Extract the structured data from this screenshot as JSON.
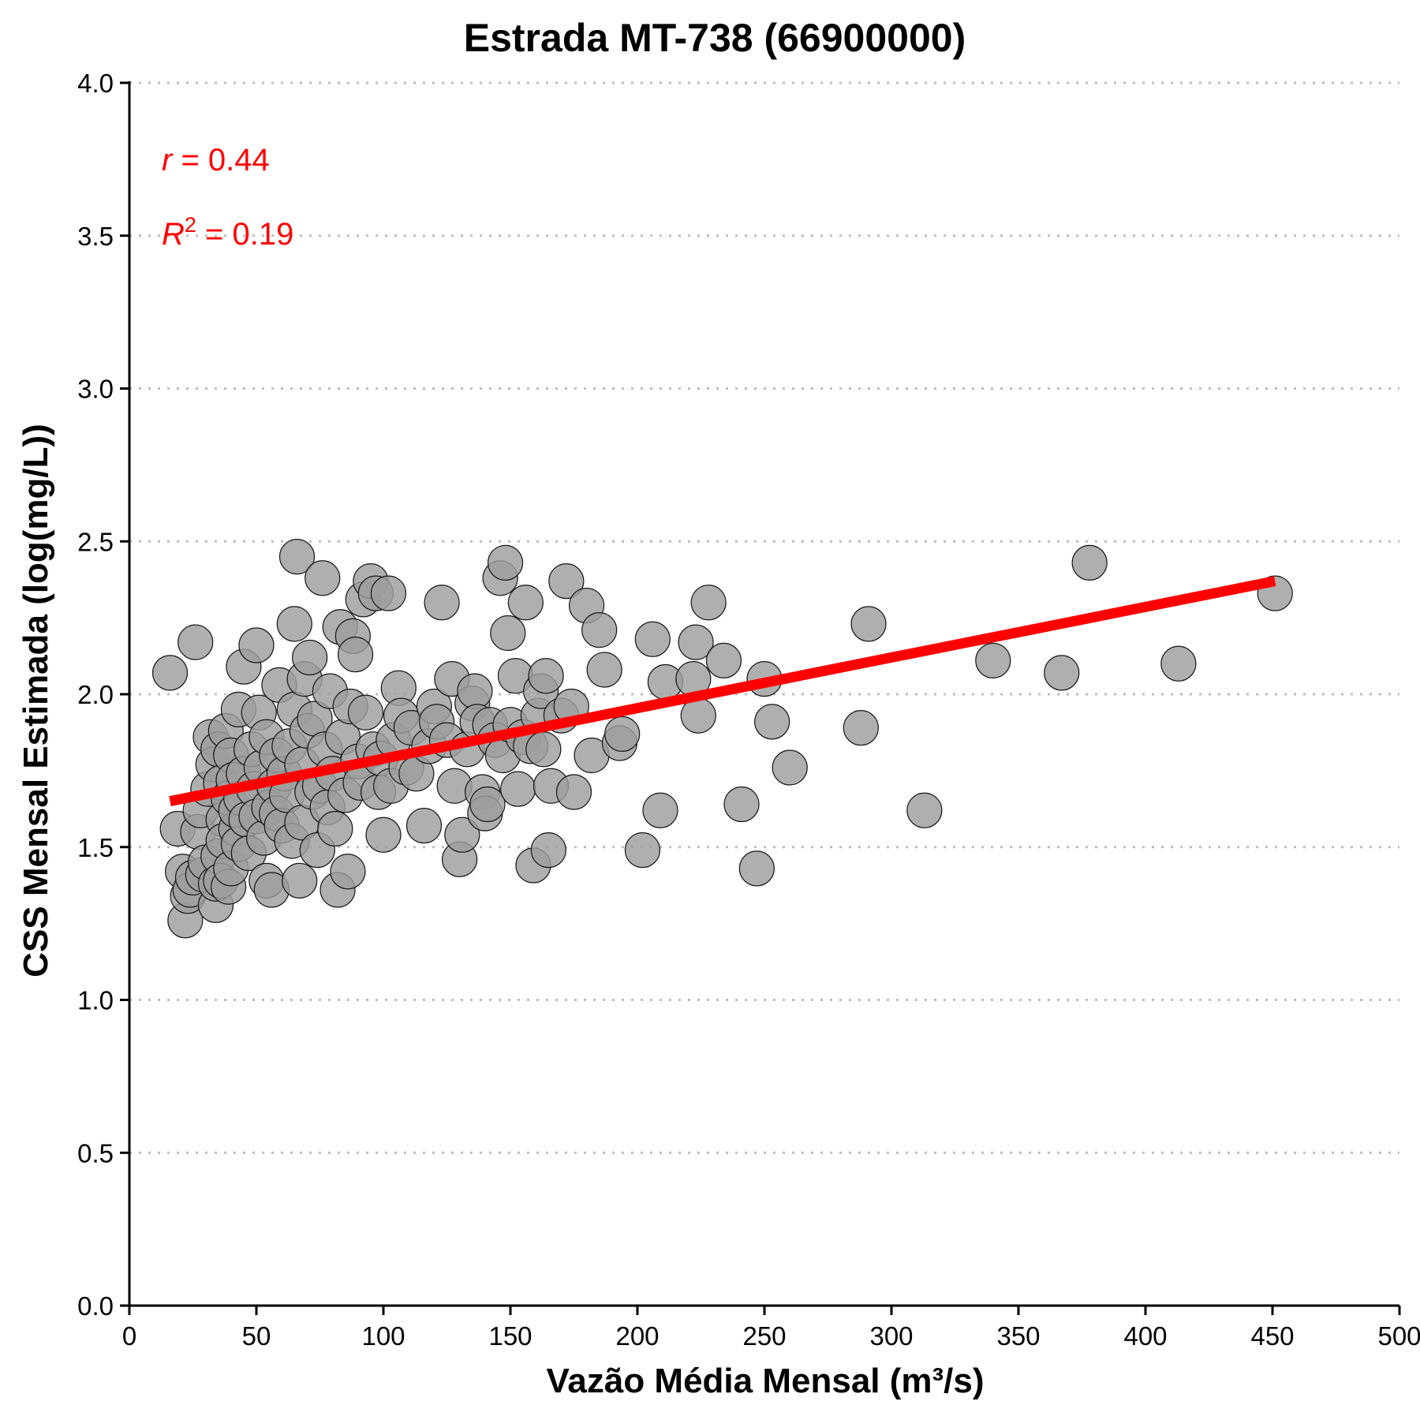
{
  "chart_data": {
    "type": "scatter",
    "title": "Estrada MT-738 (66900000)",
    "xlabel": "Vazão Média Mensal (m³/s)",
    "ylabel": "CSS Mensal Estimada (log(mg/L))",
    "xlim": [
      0,
      500
    ],
    "ylim": [
      0,
      4
    ],
    "xticks": [
      "0",
      "50",
      "100",
      "150",
      "200",
      "250",
      "300",
      "350",
      "400",
      "450",
      "500"
    ],
    "yticks": [
      "0.0",
      "0.5",
      "1.0",
      "1.5",
      "2.0",
      "2.5",
      "3.0",
      "3.5",
      "4.0"
    ],
    "grid": "horizontal-dotted",
    "point_color": "#9e9e9e",
    "line_color": "#ff0000",
    "annotations": {
      "r_symbol": "r",
      "r_text": " = 0.44",
      "r2_symbol": "R",
      "r2_exponent": "2",
      "r2_text": " = 0.19",
      "color": "#ff0000"
    },
    "trend_line": {
      "x": [
        16,
        451
      ],
      "y": [
        1.65,
        2.37
      ]
    },
    "points": [
      [
        16,
        2.07
      ],
      [
        19,
        1.56
      ],
      [
        21,
        1.42
      ],
      [
        22,
        1.26
      ],
      [
        23,
        1.34
      ],
      [
        24,
        1.36
      ],
      [
        25,
        1.4
      ],
      [
        26,
        2.17
      ],
      [
        27,
        1.55
      ],
      [
        28,
        1.62
      ],
      [
        29,
        1.41
      ],
      [
        30,
        1.45
      ],
      [
        31,
        1.69
      ],
      [
        32,
        1.86
      ],
      [
        33,
        1.77
      ],
      [
        34,
        1.31
      ],
      [
        34,
        1.38
      ],
      [
        35,
        1.47
      ],
      [
        35,
        1.82
      ],
      [
        36,
        1.71
      ],
      [
        36,
        1.39
      ],
      [
        37,
        1.59
      ],
      [
        37,
        1.52
      ],
      [
        38,
        1.88
      ],
      [
        39,
        1.37
      ],
      [
        39,
        1.66
      ],
      [
        40,
        1.43
      ],
      [
        40,
        1.8
      ],
      [
        41,
        1.72
      ],
      [
        42,
        1.56
      ],
      [
        42,
        1.62
      ],
      [
        43,
        1.95
      ],
      [
        43,
        1.51
      ],
      [
        44,
        1.66
      ],
      [
        45,
        2.09
      ],
      [
        45,
        1.74
      ],
      [
        46,
        1.59
      ],
      [
        47,
        1.48
      ],
      [
        48,
        1.82
      ],
      [
        49,
        1.69
      ],
      [
        50,
        2.16
      ],
      [
        50,
        1.6
      ],
      [
        51,
        1.94
      ],
      [
        52,
        1.76
      ],
      [
        53,
        1.53
      ],
      [
        54,
        1.39
      ],
      [
        54,
        1.86
      ],
      [
        55,
        1.63
      ],
      [
        56,
        1.36
      ],
      [
        57,
        1.7
      ],
      [
        58,
        1.8
      ],
      [
        58,
        1.61
      ],
      [
        59,
        2.03
      ],
      [
        60,
        1.57
      ],
      [
        61,
        1.74
      ],
      [
        62,
        1.67
      ],
      [
        63,
        1.83
      ],
      [
        64,
        1.52
      ],
      [
        65,
        2.23
      ],
      [
        65,
        1.95
      ],
      [
        66,
        2.45
      ],
      [
        67,
        1.39
      ],
      [
        68,
        1.58
      ],
      [
        68,
        1.77
      ],
      [
        69,
        2.05
      ],
      [
        70,
        1.88
      ],
      [
        71,
        2.12
      ],
      [
        72,
        1.68
      ],
      [
        73,
        1.92
      ],
      [
        74,
        1.49
      ],
      [
        75,
        1.7
      ],
      [
        76,
        2.38
      ],
      [
        77,
        1.82
      ],
      [
        78,
        1.63
      ],
      [
        79,
        2.01
      ],
      [
        80,
        1.74
      ],
      [
        81,
        1.56
      ],
      [
        82,
        1.36
      ],
      [
        83,
        2.22
      ],
      [
        84,
        1.86
      ],
      [
        85,
        1.67
      ],
      [
        86,
        1.42
      ],
      [
        87,
        1.96
      ],
      [
        88,
        2.19
      ],
      [
        89,
        2.13
      ],
      [
        90,
        1.78
      ],
      [
        91,
        1.71
      ],
      [
        92,
        2.31
      ],
      [
        93,
        1.94
      ],
      [
        95,
        2.37
      ],
      [
        96,
        1.82
      ],
      [
        97,
        2.33
      ],
      [
        98,
        1.68
      ],
      [
        99,
        1.79
      ],
      [
        100,
        1.54
      ],
      [
        102,
        2.33
      ],
      [
        103,
        1.7
      ],
      [
        104,
        1.85
      ],
      [
        106,
        2.02
      ],
      [
        107,
        1.93
      ],
      [
        109,
        1.76
      ],
      [
        111,
        1.89
      ],
      [
        113,
        1.74
      ],
      [
        116,
        1.57
      ],
      [
        118,
        1.83
      ],
      [
        120,
        1.96
      ],
      [
        121,
        1.91
      ],
      [
        123,
        2.3
      ],
      [
        125,
        1.85
      ],
      [
        127,
        2.05
      ],
      [
        128,
        1.7
      ],
      [
        130,
        1.46
      ],
      [
        131,
        1.54
      ],
      [
        133,
        1.82
      ],
      [
        135,
        1.97
      ],
      [
        136,
        2.01
      ],
      [
        137,
        1.91
      ],
      [
        139,
        1.68
      ],
      [
        140,
        1.61
      ],
      [
        141,
        1.64
      ],
      [
        142,
        1.9
      ],
      [
        144,
        1.85
      ],
      [
        146,
        2.38
      ],
      [
        147,
        1.8
      ],
      [
        148,
        2.43
      ],
      [
        149,
        2.2
      ],
      [
        150,
        1.9
      ],
      [
        152,
        2.06
      ],
      [
        153,
        1.69
      ],
      [
        155,
        1.86
      ],
      [
        156,
        2.3
      ],
      [
        158,
        1.83
      ],
      [
        159,
        1.44
      ],
      [
        161,
        1.93
      ],
      [
        162,
        2.01
      ],
      [
        163,
        1.82
      ],
      [
        164,
        2.06
      ],
      [
        165,
        1.49
      ],
      [
        166,
        1.7
      ],
      [
        170,
        1.93
      ],
      [
        172,
        2.37
      ],
      [
        174,
        1.96
      ],
      [
        175,
        1.68
      ],
      [
        180,
        2.29
      ],
      [
        182,
        1.8
      ],
      [
        185,
        2.21
      ],
      [
        187,
        2.08
      ],
      [
        193,
        1.84
      ],
      [
        194,
        1.87
      ],
      [
        202,
        1.49
      ],
      [
        206,
        2.18
      ],
      [
        209,
        1.62
      ],
      [
        211,
        2.04
      ],
      [
        222,
        2.05
      ],
      [
        223,
        2.17
      ],
      [
        224,
        1.93
      ],
      [
        228,
        2.3
      ],
      [
        234,
        2.11
      ],
      [
        241,
        1.64
      ],
      [
        247,
        1.43
      ],
      [
        250,
        2.05
      ],
      [
        253,
        1.91
      ],
      [
        260,
        1.76
      ],
      [
        288,
        1.89
      ],
      [
        291,
        2.23
      ],
      [
        313,
        1.62
      ],
      [
        340,
        2.11
      ],
      [
        367,
        2.07
      ],
      [
        378,
        2.43
      ],
      [
        413,
        2.1
      ],
      [
        451,
        2.33
      ]
    ]
  }
}
